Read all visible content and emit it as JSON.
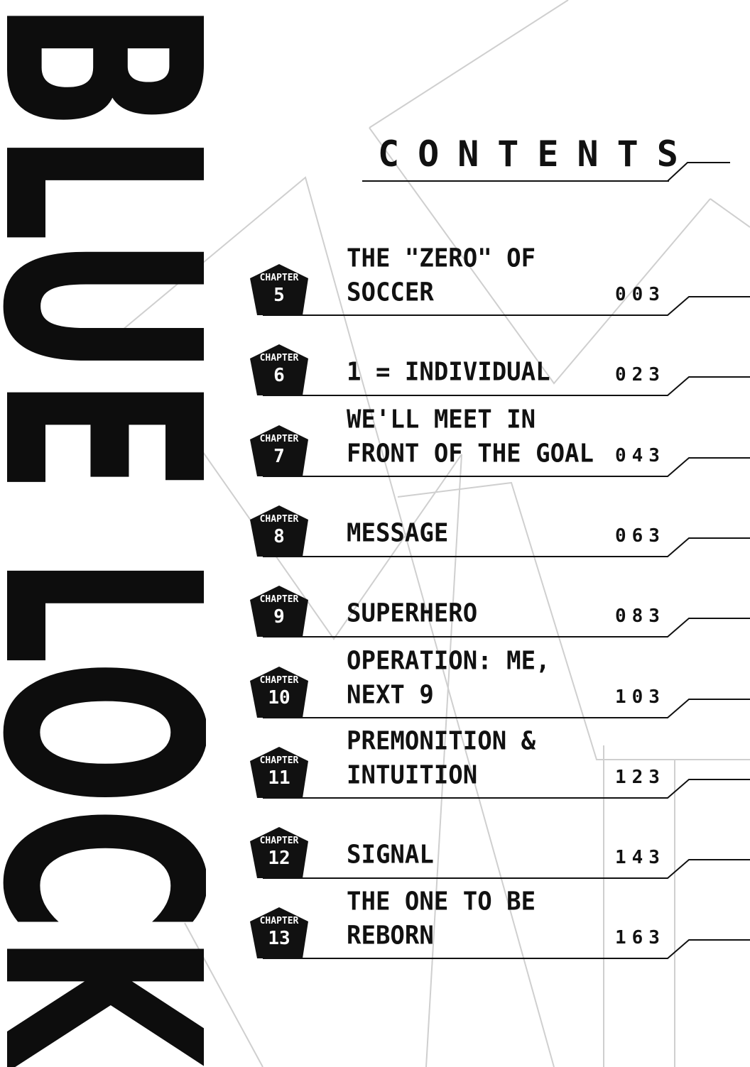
{
  "logo": {
    "text": "BLUE LOCK"
  },
  "header": {
    "title": "CONTENTS"
  },
  "chapter_label": "CHAPTER",
  "chapters": [
    {
      "number": "5",
      "title": "THE \"ZERO\" OF\nSOCCER",
      "page": "003"
    },
    {
      "number": "6",
      "title": "1 = INDIVIDUAL",
      "page": "023"
    },
    {
      "number": "7",
      "title": "WE'LL MEET IN\nFRONT OF THE GOAL",
      "page": "043"
    },
    {
      "number": "8",
      "title": "MESSAGE",
      "page": "063"
    },
    {
      "number": "9",
      "title": "SUPERHERO",
      "page": "083"
    },
    {
      "number": "10",
      "title": "OPERATION: ME,\nNEXT 9",
      "page": "103"
    },
    {
      "number": "11",
      "title": "PREMONITION &\nINTUITION",
      "page": "123"
    },
    {
      "number": "12",
      "title": "SIGNAL",
      "page": "143"
    },
    {
      "number": "13",
      "title": "THE ONE TO BE\nREBORN",
      "page": "163"
    }
  ]
}
